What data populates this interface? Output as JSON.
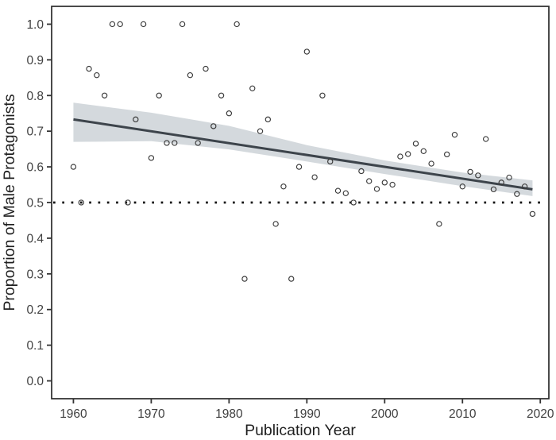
{
  "figure": {
    "background": "#ffffff"
  },
  "chart_data": {
    "type": "scatter",
    "title": "",
    "xlabel": "Publication Year",
    "ylabel": "Proportion of Male Protagonists",
    "x_ticks": [
      1960,
      1970,
      1980,
      1990,
      2000,
      2010,
      2020
    ],
    "x_tick_labels": [
      "1960",
      "1970",
      "1980",
      "1990",
      "2000",
      "2010",
      "2020"
    ],
    "y_ticks": [
      0.0,
      0.1,
      0.2,
      0.3,
      0.4,
      0.5,
      0.6,
      0.7,
      0.8,
      0.9,
      1.0
    ],
    "y_tick_labels": [
      "0.0",
      "0.1",
      "0.2",
      "0.3",
      "0.4",
      "0.5",
      "0.6",
      "0.7",
      "0.8",
      "0.9",
      "1.0"
    ],
    "xlim": [
      1957.2,
      2021.1
    ],
    "ylim": [
      -0.05,
      1.05
    ],
    "grid": false,
    "legend": false,
    "points": {
      "x": [
        1960,
        1961,
        1962,
        1963,
        1964,
        1965,
        1966,
        1967,
        1968,
        1969,
        1970,
        1971,
        1972,
        1973,
        1974,
        1975,
        1976,
        1977,
        1978,
        1979,
        1980,
        1981,
        1982,
        1983,
        1984,
        1985,
        1986,
        1987,
        1988,
        1989,
        1990,
        1991,
        1992,
        1993,
        1994,
        1995,
        1996,
        1997,
        1998,
        1999,
        2000,
        2001,
        2002,
        2003,
        2004,
        2005,
        2006,
        2007,
        2008,
        2009,
        2010,
        2011,
        2012,
        2013,
        2014,
        2015,
        2016,
        2017,
        2018,
        2019
      ],
      "y": [
        0.6,
        0.5,
        0.875,
        0.857,
        0.8,
        1.0,
        1.0,
        0.5,
        0.733,
        1.0,
        0.625,
        0.8,
        0.667,
        0.667,
        1.0,
        0.857,
        0.667,
        0.875,
        0.714,
        0.8,
        0.75,
        1.0,
        0.286,
        0.82,
        0.7,
        0.733,
        0.44,
        0.545,
        0.286,
        0.6,
        0.923,
        0.571,
        0.8,
        0.615,
        0.533,
        0.526,
        0.5,
        0.588,
        0.56,
        0.538,
        0.556,
        0.55,
        0.629,
        0.636,
        0.665,
        0.644,
        0.609,
        0.44,
        0.635,
        0.69,
        0.545,
        0.586,
        0.576,
        0.678,
        0.537,
        0.556,
        0.57,
        0.524,
        0.545,
        0.468
      ]
    },
    "trend_line": {
      "x": [
        1960,
        2019
      ],
      "y": [
        0.733,
        0.537
      ],
      "color": "#3d444b",
      "width": 3
    },
    "confidence_band": {
      "x": [
        1960,
        1970,
        1980,
        1990,
        2000,
        2010,
        2019
      ],
      "upper": [
        0.78,
        0.752,
        0.715,
        0.661,
        0.618,
        0.584,
        0.562
      ],
      "lower": [
        0.67,
        0.672,
        0.649,
        0.615,
        0.58,
        0.546,
        0.518
      ],
      "color": "#d4d9dd"
    },
    "reference_line": {
      "y": 0.5,
      "style": "dotted",
      "color": "#111111"
    },
    "colors": {
      "point_stroke": "#3a3a3a",
      "panel_border": "#2b2b2b",
      "tick_mark": "#333333",
      "tick_label": "#404040",
      "axis_title": "#1f1f1f",
      "background": "#ffffff"
    }
  }
}
